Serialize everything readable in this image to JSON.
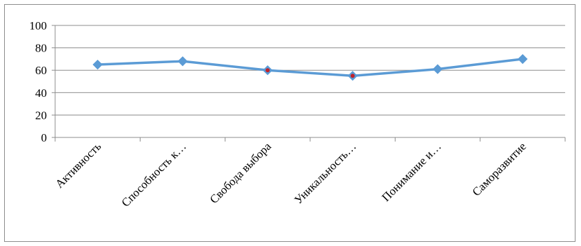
{
  "chart_data": {
    "type": "line",
    "categories": [
      "Активность",
      "Способность к…",
      "Свобода выбора",
      "Уникальность…",
      "Понимание и…",
      "Саморазвитие"
    ],
    "series": [
      {
        "values": [
          65,
          68,
          60,
          55,
          61,
          70
        ],
        "color": "#5b9bd5",
        "marker": "diamond",
        "marker_colors": [
          "#5b9bd5",
          "#5b9bd5",
          "#c0232b",
          "#c0232b",
          "#5b9bd5",
          "#5b9bd5"
        ]
      }
    ],
    "yticks": [
      "0",
      "20",
      "40",
      "60",
      "80",
      "100"
    ],
    "ylim": [
      0,
      100
    ],
    "grid": true,
    "legend": "none",
    "title": "",
    "xlabel": "",
    "ylabel": ""
  }
}
